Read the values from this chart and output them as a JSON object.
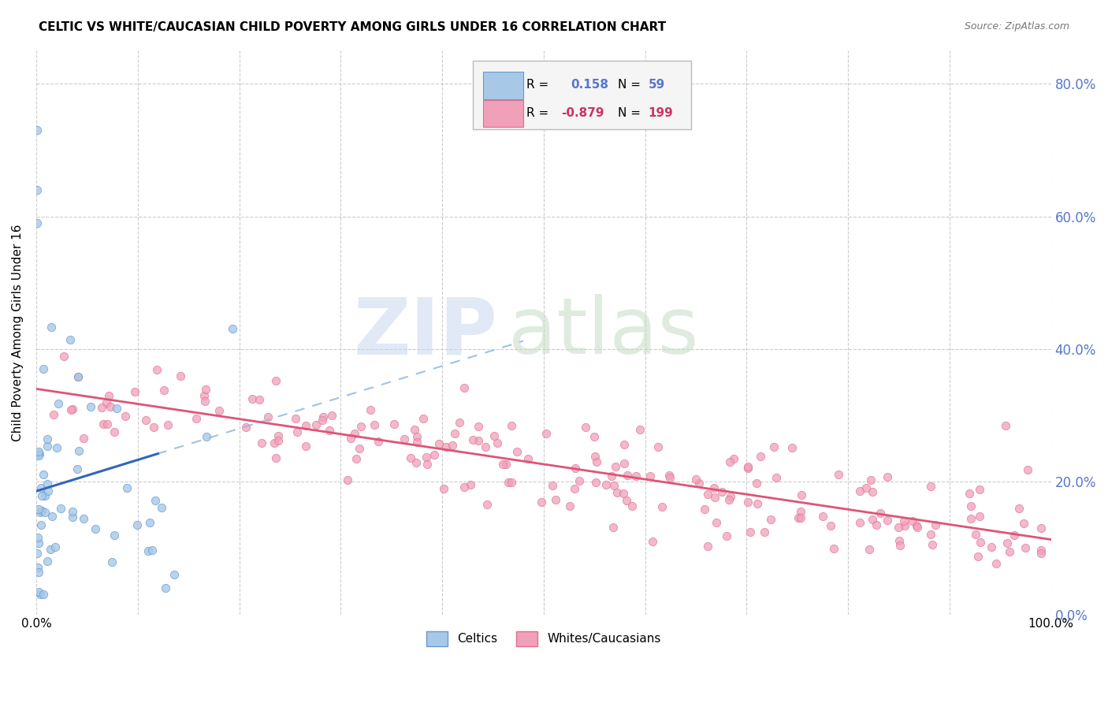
{
  "title": "CELTIC VS WHITE/CAUCASIAN CHILD POVERTY AMONG GIRLS UNDER 16 CORRELATION CHART",
  "source": "Source: ZipAtlas.com",
  "ylabel": "Child Poverty Among Girls Under 16",
  "xlim": [
    0.0,
    1.0
  ],
  "ylim": [
    0.0,
    0.85
  ],
  "yticks": [
    0.0,
    0.2,
    0.4,
    0.6,
    0.8
  ],
  "celtics_color": "#a8c8e8",
  "celtics_edge": "#6699cc",
  "whites_color": "#f0a0b8",
  "whites_edge": "#dd7090",
  "trendline_celtic_solid_color": "#3366bb",
  "trendline_celtic_dash_color": "#99bbdd",
  "trendline_white_color": "#dd5577",
  "right_axis_color": "#5577cc",
  "background_color": "#ffffff",
  "grid_color": "#cccccc",
  "legend_box_color": "#f5f5f5",
  "legend_border_color": "#bbbbbb"
}
